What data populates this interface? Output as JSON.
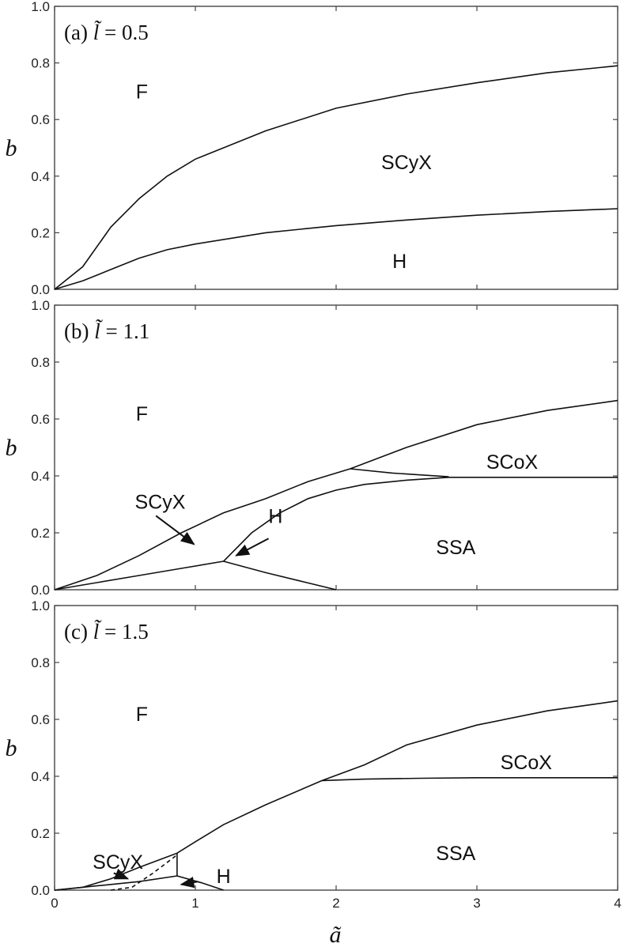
{
  "chart_data": [
    {
      "type": "line",
      "panel_label": "(a)",
      "param_value": "0.5",
      "xlabel": "ã",
      "ylabel": "b",
      "xlim": [
        0,
        4
      ],
      "ylim": [
        0,
        1.0
      ],
      "x_ticks": [
        "0",
        "1",
        "2",
        "3",
        "4"
      ],
      "y_ticks": [
        "0.0",
        "0.2",
        "0.4",
        "0.6",
        "0.8",
        "1.0"
      ],
      "series": [
        {
          "points": [
            [
              0,
              0
            ],
            [
              0.2,
              0.08
            ],
            [
              0.4,
              0.22
            ],
            [
              0.6,
              0.32
            ],
            [
              0.8,
              0.4
            ],
            [
              1.0,
              0.46
            ],
            [
              1.5,
              0.56
            ],
            [
              2.0,
              0.64
            ],
            [
              2.5,
              0.69
            ],
            [
              3.0,
              0.73
            ],
            [
              3.5,
              0.765
            ],
            [
              4.0,
              0.79
            ]
          ]
        },
        {
          "points": [
            [
              0,
              0
            ],
            [
              0.2,
              0.03
            ],
            [
              0.4,
              0.07
            ],
            [
              0.6,
              0.11
            ],
            [
              0.8,
              0.14
            ],
            [
              1.0,
              0.16
            ],
            [
              1.5,
              0.2
            ],
            [
              2.0,
              0.225
            ],
            [
              2.5,
              0.245
            ],
            [
              3.0,
              0.262
            ],
            [
              3.5,
              0.275
            ],
            [
              4.0,
              0.285
            ]
          ]
        }
      ],
      "regions": [
        {
          "label": "F",
          "x": 0.62,
          "y": 0.7
        },
        {
          "label": "SCyX",
          "x": 2.5,
          "y": 0.45
        },
        {
          "label": "H",
          "x": 2.45,
          "y": 0.1
        }
      ]
    },
    {
      "type": "line",
      "panel_label": "(b)",
      "param_value": "1.1",
      "xlabel": "ã",
      "ylabel": "b",
      "xlim": [
        0,
        4
      ],
      "ylim": [
        0,
        1.0
      ],
      "x_ticks": [
        "0",
        "1",
        "2",
        "3",
        "4"
      ],
      "y_ticks": [
        "0.0",
        "0.2",
        "0.4",
        "0.6",
        "0.8",
        "1.0"
      ],
      "series": [
        {
          "points": [
            [
              0,
              0
            ],
            [
              0.3,
              0.05
            ],
            [
              0.6,
              0.12
            ],
            [
              0.9,
              0.2
            ],
            [
              1.2,
              0.27
            ],
            [
              1.5,
              0.32
            ],
            [
              1.8,
              0.38
            ],
            [
              2.1,
              0.425
            ],
            [
              2.5,
              0.5
            ],
            [
              3.0,
              0.58
            ],
            [
              3.5,
              0.63
            ],
            [
              4.0,
              0.665
            ]
          ]
        },
        {
          "points": [
            [
              0,
              0
            ],
            [
              0.3,
              0.025
            ],
            [
              0.6,
              0.05
            ],
            [
              0.9,
              0.075
            ],
            [
              1.2,
              0.1
            ]
          ]
        },
        {
          "points": [
            [
              1.2,
              0.1
            ],
            [
              1.4,
              0.2
            ],
            [
              1.6,
              0.27
            ],
            [
              1.8,
              0.32
            ],
            [
              2.0,
              0.35
            ],
            [
              2.2,
              0.37
            ],
            [
              2.5,
              0.385
            ],
            [
              2.8,
              0.395
            ],
            [
              3.2,
              0.395
            ],
            [
              4.0,
              0.395
            ]
          ]
        },
        {
          "points": [
            [
              1.2,
              0.1
            ],
            [
              1.5,
              0.06
            ],
            [
              1.75,
              0.03
            ],
            [
              2.0,
              0
            ]
          ]
        },
        {
          "points": [
            [
              2.1,
              0.425
            ],
            [
              2.4,
              0.41
            ],
            [
              2.8,
              0.397
            ]
          ]
        }
      ],
      "regions": [
        {
          "label": "F",
          "x": 0.62,
          "y": 0.62
        },
        {
          "label": "SCoX",
          "x": 3.25,
          "y": 0.45
        },
        {
          "label": "SSA",
          "x": 2.85,
          "y": 0.15
        },
        {
          "label": "SCyX",
          "x": 0.75,
          "y": 0.31
        },
        {
          "label": "H",
          "x": 1.57,
          "y": 0.26
        }
      ],
      "arrows": [
        {
          "label": "SCyX",
          "from": [
            0.72,
            0.26
          ],
          "to": [
            0.99,
            0.16
          ]
        },
        {
          "label": "H",
          "from": [
            1.52,
            0.18
          ],
          "to": [
            1.29,
            0.12
          ]
        }
      ]
    },
    {
      "type": "line",
      "panel_label": "(c)",
      "param_value": "1.5",
      "xlabel": "ã",
      "ylabel": "b",
      "xlim": [
        0,
        4
      ],
      "ylim": [
        0,
        1.0
      ],
      "x_ticks": [
        "0",
        "1",
        "2",
        "3",
        "4"
      ],
      "y_ticks": [
        "0.0",
        "0.2",
        "0.4",
        "0.6",
        "0.8",
        "1.0"
      ],
      "series": [
        {
          "points": [
            [
              0,
              0
            ],
            [
              0.2,
              0.01
            ],
            [
              0.4,
              0.04
            ],
            [
              0.6,
              0.08
            ],
            [
              0.87,
              0.13
            ]
          ]
        },
        {
          "points": [
            [
              0.87,
              0.13
            ],
            [
              1.0,
              0.17
            ],
            [
              1.2,
              0.23
            ],
            [
              1.5,
              0.3
            ],
            [
              1.9,
              0.385
            ],
            [
              2.2,
              0.44
            ],
            [
              2.5,
              0.51
            ],
            [
              3.0,
              0.58
            ],
            [
              3.5,
              0.63
            ],
            [
              4.0,
              0.665
            ]
          ]
        },
        {
          "points": [
            [
              1.9,
              0.385
            ],
            [
              2.2,
              0.39
            ],
            [
              2.6,
              0.393
            ],
            [
              3.0,
              0.395
            ],
            [
              4.0,
              0.395
            ]
          ]
        },
        {
          "points": [
            [
              0,
              0
            ],
            [
              0.3,
              0.015
            ],
            [
              0.6,
              0.03
            ],
            [
              0.87,
              0.05
            ]
          ]
        },
        {
          "points": [
            [
              0.87,
              0.05
            ],
            [
              0.87,
              0.13
            ]
          ]
        },
        {
          "points": [
            [
              0.87,
              0.05
            ],
            [
              1.05,
              0.025
            ],
            [
              1.2,
              0
            ]
          ]
        },
        {
          "points": [
            [
              0.4,
              0
            ],
            [
              0.55,
              0.01
            ],
            [
              0.7,
              0.06
            ],
            [
              0.86,
              0.12
            ]
          ],
          "style": "dashed"
        }
      ],
      "regions": [
        {
          "label": "F",
          "x": 0.62,
          "y": 0.62
        },
        {
          "label": "SCoX",
          "x": 3.35,
          "y": 0.45
        },
        {
          "label": "SSA",
          "x": 2.85,
          "y": 0.13
        },
        {
          "label": "SCyX",
          "x": 0.45,
          "y": 0.1
        },
        {
          "label": "H",
          "x": 1.2,
          "y": 0.05
        }
      ],
      "arrows": [
        {
          "label": "SCyX",
          "from": [
            0.42,
            0.06
          ],
          "to": [
            0.52,
            0.04
          ]
        },
        {
          "label": "H",
          "from": [
            1.02,
            0.03
          ],
          "to": [
            0.9,
            0.02
          ]
        }
      ]
    }
  ]
}
